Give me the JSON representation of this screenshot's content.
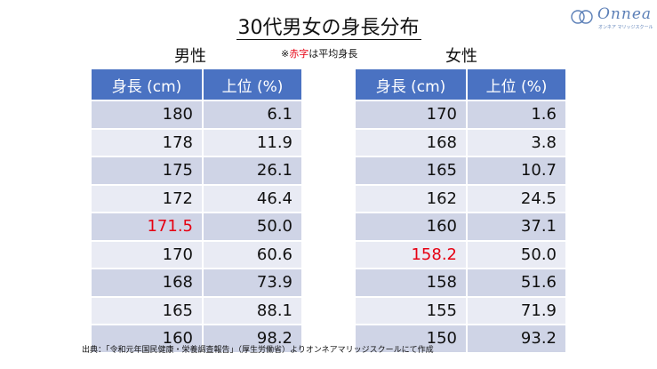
{
  "title": "30代男女の身長分布",
  "logo": {
    "brand": "Onnea",
    "subtitle": "オンネア マリッジスクール"
  },
  "note": {
    "prefix": "※",
    "highlight": "赤字",
    "suffix": "は平均身長"
  },
  "male": {
    "label": "男性",
    "headers": [
      "身長 (cm)",
      "上位 (%)"
    ],
    "rows": [
      {
        "height": "180",
        "percent": "6.1"
      },
      {
        "height": "178",
        "percent": "11.9"
      },
      {
        "height": "175",
        "percent": "26.1"
      },
      {
        "height": "172",
        "percent": "46.4"
      },
      {
        "height": "171.5",
        "percent": "50.0"
      },
      {
        "height": "170",
        "percent": "60.6"
      },
      {
        "height": "168",
        "percent": "73.9"
      },
      {
        "height": "165",
        "percent": "88.1"
      },
      {
        "height": "160",
        "percent": "98.2"
      }
    ]
  },
  "female": {
    "label": "女性",
    "headers": [
      "身長 (cm)",
      "上位 (%)"
    ],
    "rows": [
      {
        "height": "170",
        "percent": "1.6"
      },
      {
        "height": "168",
        "percent": "3.8"
      },
      {
        "height": "165",
        "percent": "10.7"
      },
      {
        "height": "162",
        "percent": "24.5"
      },
      {
        "height": "160",
        "percent": "37.1"
      },
      {
        "height": "158.2",
        "percent": "50.0"
      },
      {
        "height": "158",
        "percent": "51.6"
      },
      {
        "height": "155",
        "percent": "71.9"
      },
      {
        "height": "150",
        "percent": "93.2"
      }
    ]
  },
  "source": "出典：「令和元年国民健康・栄養調査報告」（厚生労働省）よりオンネアマリッジスクールにて作成",
  "colors": {
    "header": "#4a72c2",
    "row_dark": "#cfd4e6",
    "row_light": "#e9ebf4",
    "highlight": "#e60012",
    "logo": "#5b7fb7"
  }
}
